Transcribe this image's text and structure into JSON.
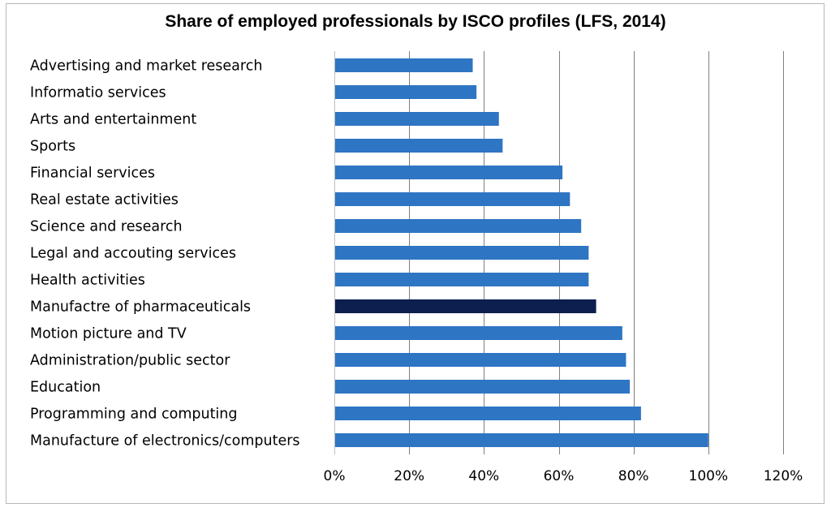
{
  "chart_data": {
    "type": "bar",
    "orientation": "horizontal",
    "title": "Share of employed professionals by ISCO profiles (LFS, 2014)",
    "xlabel": "",
    "ylabel": "",
    "categories": [
      "Advertising and market research",
      "Informatio services",
      "Arts and entertainment",
      "Sports",
      "Financial services",
      "Real estate activities",
      "Science and research",
      "Legal and accouting services",
      "Health activities",
      "Manufactre of pharmaceuticals",
      "Motion picture and TV",
      "Administration/public sector",
      "Education",
      "Programming and computing",
      "Manufacture of electronics/computers"
    ],
    "values": [
      0.37,
      0.38,
      0.44,
      0.45,
      0.61,
      0.63,
      0.66,
      0.68,
      0.68,
      0.7,
      0.77,
      0.78,
      0.79,
      0.82,
      1.0
    ],
    "highlight_category": "Manufactre of pharmaceuticals",
    "xlim": [
      0,
      1.2
    ],
    "xticks": [
      0,
      0.2,
      0.4,
      0.6,
      0.8,
      1.0,
      1.2
    ],
    "xtick_labels": [
      "0%",
      "20%",
      "40%",
      "60%",
      "80%",
      "100%",
      "120%"
    ],
    "grid": "vertical",
    "legend": "none",
    "colors": {
      "bar": "#2e75c4",
      "highlight": "#0d1f4f",
      "grid": "#7f7f7f",
      "frame": "#b7b7b7"
    }
  }
}
